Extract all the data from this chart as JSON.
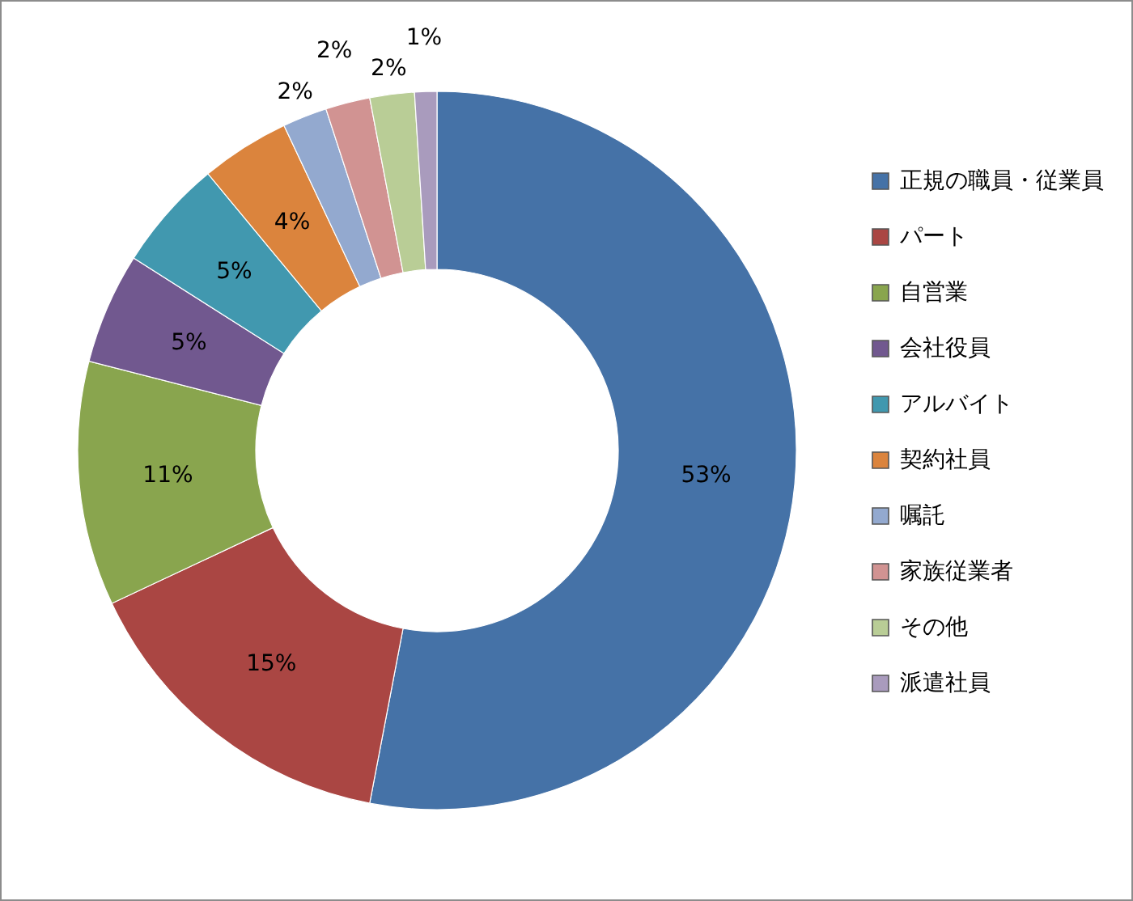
{
  "chart_data": {
    "type": "donut",
    "categories": [
      "正規の職員・従業員",
      "パート",
      "自営業",
      "会社役員",
      "アルバイト",
      "契約社員",
      "嘱託",
      "家族従業者",
      "その他",
      "派遣社員"
    ],
    "values": [
      53,
      15,
      11,
      5,
      5,
      4,
      2,
      2,
      2,
      1
    ],
    "value_labels": [
      "53%",
      "15%",
      "11%",
      "5%",
      "5%",
      "4%",
      "2%",
      "2%",
      "2%",
      "1%"
    ],
    "colors": [
      "#4572a7",
      "#aa4643",
      "#89a54e",
      "#71588f",
      "#4198af",
      "#db843d",
      "#93a9cf",
      "#d19392",
      "#b9cd96",
      "#a99bbd"
    ],
    "legend": "right"
  }
}
